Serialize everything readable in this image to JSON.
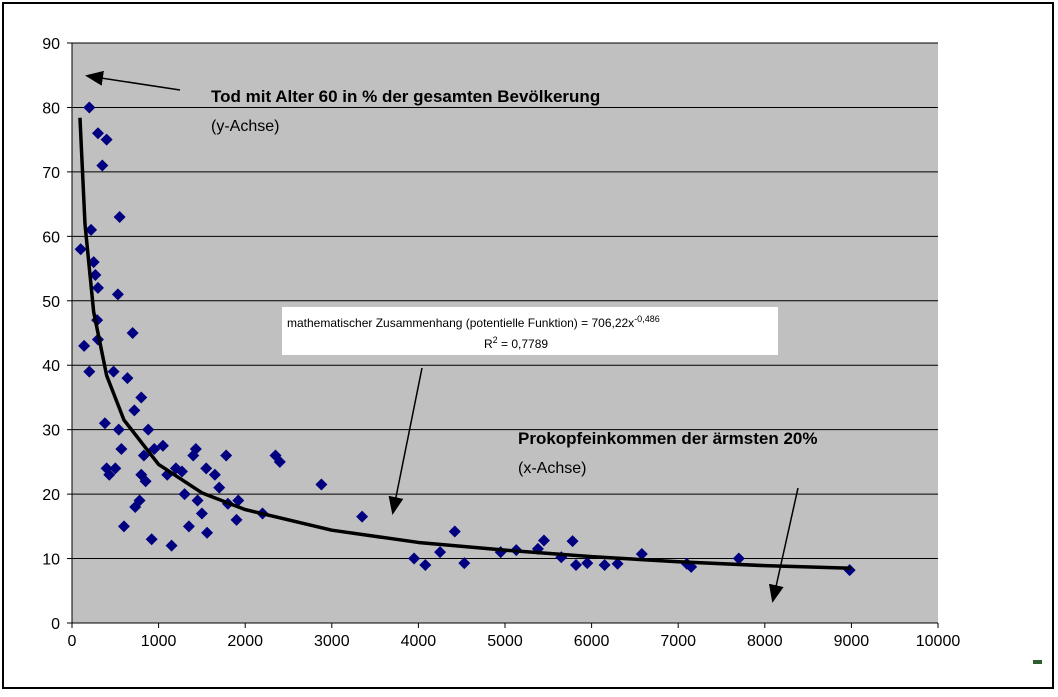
{
  "chart_data": {
    "type": "scatter",
    "xlim": [
      0,
      10000
    ],
    "xticks": [
      0,
      1000,
      2000,
      3000,
      4000,
      5000,
      6000,
      7000,
      8000,
      9000,
      10000
    ],
    "ylim": [
      0,
      90
    ],
    "yticks": [
      0,
      10,
      20,
      30,
      40,
      50,
      60,
      70,
      80,
      90
    ],
    "grid": true,
    "background": "#c0c0c0",
    "series": [
      {
        "type": "scatter",
        "color": "#000080",
        "x": [
          100,
          140,
          200,
          200,
          220,
          250,
          270,
          300,
          290,
          300,
          300,
          350,
          380,
          400,
          400,
          430,
          480,
          500,
          530,
          540,
          550,
          570,
          600,
          640,
          700,
          720,
          730,
          780,
          800,
          800,
          830,
          850,
          880,
          920,
          950,
          1050,
          1100,
          1150,
          1200,
          1270,
          1300,
          1350,
          1400,
          1430,
          1450,
          1500,
          1550,
          1560,
          1650,
          1700,
          1780,
          1800,
          1900,
          1920,
          2200,
          2350,
          2400,
          2880,
          3350,
          3950,
          4080,
          4250,
          4420,
          4530,
          4950,
          5130,
          5380,
          5450,
          5650,
          5780,
          5820,
          5950,
          6150,
          6300,
          6580,
          7100,
          7150,
          7700,
          8980
        ],
        "values": [
          58,
          43,
          80,
          39,
          61,
          56,
          54,
          52,
          47,
          44,
          76,
          71,
          31,
          75,
          24,
          23,
          39,
          24,
          51,
          30,
          63,
          27,
          15,
          38,
          45,
          33,
          18,
          19,
          35,
          23,
          26,
          22,
          30,
          13,
          27,
          27.5,
          23,
          12,
          24,
          23.5,
          20,
          15,
          26,
          27,
          19,
          17,
          24,
          14,
          23,
          21,
          26,
          18.5,
          16,
          19,
          17,
          26,
          25,
          21.5,
          16.5,
          10,
          9,
          11,
          14.2,
          9.3,
          11,
          11.3,
          11.5,
          12.8,
          10.2,
          12.7,
          9,
          9.3,
          9,
          9.2,
          10.7,
          9.2,
          8.7,
          10,
          8.2
        ]
      },
      {
        "type": "line",
        "color": "#000000",
        "x": [
          92,
          150,
          250,
          400,
          600,
          1000,
          1500,
          2000,
          3000,
          4000,
          5000,
          6000,
          7000,
          8000,
          9000
        ],
        "values": [
          78.4,
          61.9,
          48.3,
          38.4,
          31.5,
          24.6,
          20.2,
          17.6,
          14.4,
          12.5,
          11.3,
          10.3,
          9.5,
          8.9,
          8.5
        ]
      }
    ],
    "annotations": {
      "y_title": "Tod mit Alter 60 in % der gesamten Bevölkerung",
      "y_note": "(y-Achse)",
      "x_title": "Prokopfeinkommen der ärmsten 20%",
      "x_note": "(x-Achse)",
      "equation": "mathematischer Zusammenhang (potentielle Funktion) = 706,22x",
      "exponent": "-0,486",
      "r_symbol": "R",
      "r_power": "2",
      "r_value": " = 0,7789"
    }
  }
}
